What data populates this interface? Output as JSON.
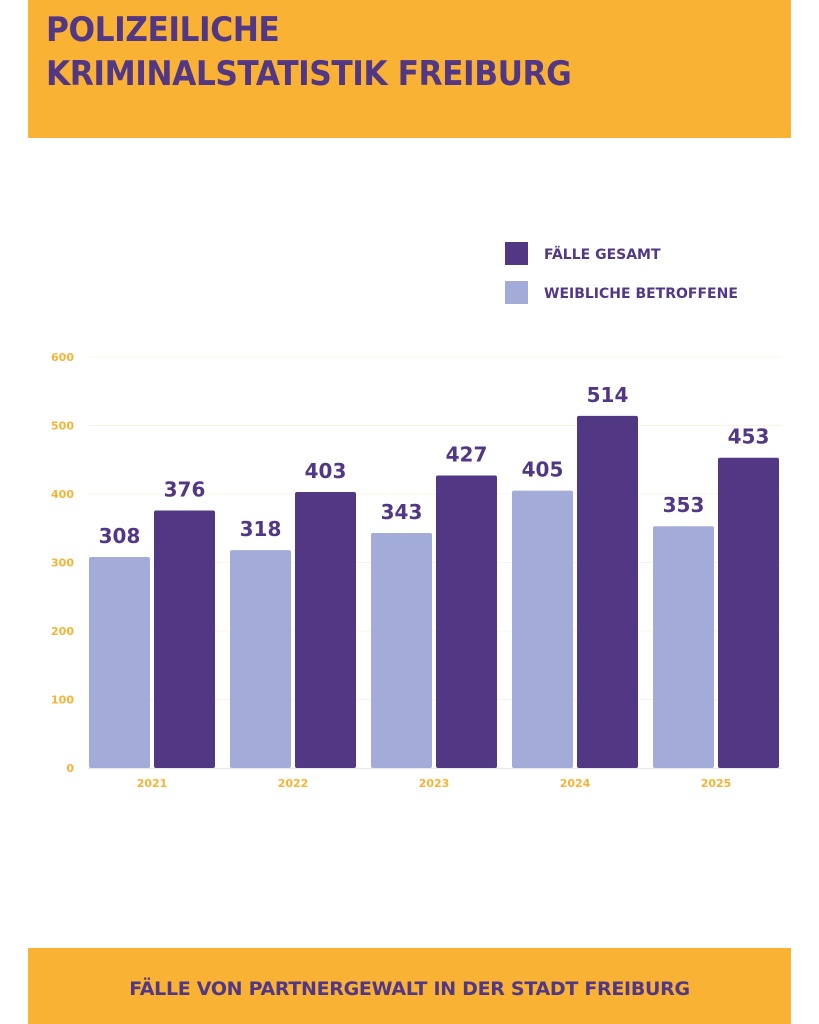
{
  "header": {
    "title_line1": "POLIZEILICHE",
    "title_line2": "KRIMINALSTATISTIK FREIBURG"
  },
  "footer": {
    "subtitle": "FÄLLE VON PARTNERGEWALT IN DER STADT FREIBURG"
  },
  "colors": {
    "orange": "#F9B233",
    "dark_purple": "#523785",
    "light_purple": "#A3ACD9"
  },
  "chart_data": {
    "type": "bar",
    "title": "FÄLLE VON PARTNERGEWALT IN DER STADT FREIBURG",
    "categories": [
      "2021",
      "2022",
      "2023",
      "2024",
      "2025"
    ],
    "series": [
      {
        "name": "WEIBLICHE BETROFFENE",
        "color": "#A3ACD9",
        "values": [
          308,
          318,
          343,
          405,
          353
        ]
      },
      {
        "name": "FÄLLE GESAMT",
        "color": "#523785",
        "values": [
          376,
          403,
          427,
          514,
          453
        ]
      }
    ],
    "legend_order": [
      "FÄLLE GESAMT",
      "WEIBLICHE BETROFFENE"
    ],
    "yticks": [
      0,
      100,
      200,
      300,
      400,
      500,
      600
    ],
    "ylim": [
      0,
      600
    ],
    "grid": true,
    "legend": "top-right",
    "xlabel": "",
    "ylabel": ""
  }
}
